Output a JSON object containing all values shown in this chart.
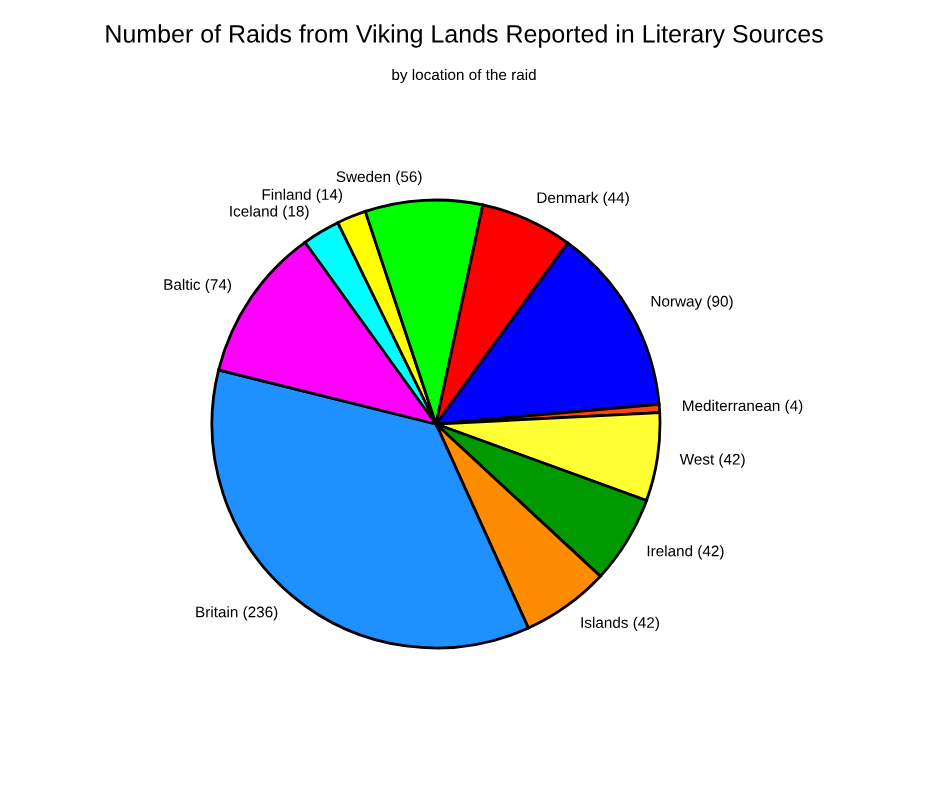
{
  "chart_data": {
    "type": "pie",
    "title": "Number of Raids from Viking Lands Reported in Literary Sources",
    "subtitle": "by location of the raid",
    "categories": [
      "Norway (90)",
      "Mediterranean (4)",
      "West (42)",
      "Ireland (42)",
      "Islands (42)",
      "Britain (236)",
      "Baltic (74)",
      "Iceland (18)",
      "Finland (14)",
      "Sweden (56)",
      "Denmark (44)"
    ],
    "values": [
      90,
      4,
      42,
      42,
      42,
      236,
      74,
      18,
      14,
      56,
      44
    ],
    "colors": [
      "#0000ff",
      "#ff4500",
      "#ffff33",
      "#009900",
      "#ff8c00",
      "#1e90ff",
      "#ff00ff",
      "#00ffff",
      "#ffff00",
      "#00ff00",
      "#ff0000"
    ],
    "legend": false
  }
}
